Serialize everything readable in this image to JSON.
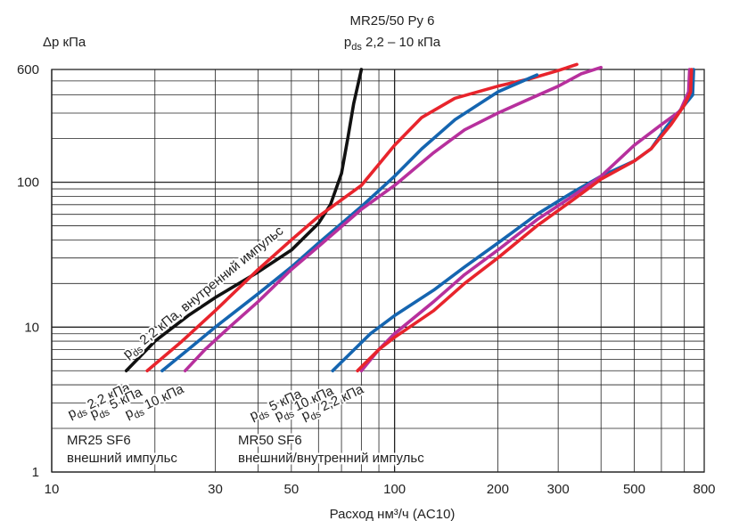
{
  "chart_data": {
    "type": "line",
    "title": "MR25/50 Ру 6",
    "subtitle_parts": [
      "p",
      "ds",
      " 2,2 – 10 кПа"
    ],
    "ylabel": "Δp кПа",
    "xlabel": "Расход нм³/ч (AC10)",
    "x_scale": "log",
    "y_scale": "log",
    "xlim": [
      10,
      800
    ],
    "ylim": [
      1,
      600
    ],
    "x_ticks": [
      {
        "value": 10,
        "label": "10"
      },
      {
        "value": 30,
        "label": "30"
      },
      {
        "value": 50,
        "label": "50"
      },
      {
        "value": 100,
        "label": "100"
      },
      {
        "value": 200,
        "label": "200"
      },
      {
        "value": 300,
        "label": "300"
      },
      {
        "value": 500,
        "label": "500"
      },
      {
        "value": 800,
        "label": "800"
      }
    ],
    "y_ticks": [
      {
        "value": 1,
        "label": "1"
      },
      {
        "value": 10,
        "label": "10"
      },
      {
        "value": 100,
        "label": "100"
      },
      {
        "value": 600,
        "label": "600"
      }
    ],
    "grid": true,
    "colors": {
      "black": "#111111",
      "red": "#e8242c",
      "blue": "#1565b0",
      "magenta": "#b7309d"
    },
    "series": [
      {
        "color": "black",
        "points": [
          [
            16.5,
            5
          ],
          [
            20,
            8
          ],
          [
            25,
            12
          ],
          [
            30,
            16
          ],
          [
            40,
            24
          ],
          [
            50,
            34
          ],
          [
            60,
            52
          ],
          [
            65,
            70
          ],
          [
            70,
            115
          ],
          [
            73,
            200
          ],
          [
            76,
            350
          ],
          [
            80,
            600
          ]
        ]
      },
      {
        "color": "red",
        "points": [
          [
            19,
            5
          ],
          [
            24,
            8
          ],
          [
            30,
            13
          ],
          [
            40,
            25
          ],
          [
            50,
            40
          ],
          [
            60,
            58
          ],
          [
            80,
            95
          ],
          [
            100,
            180
          ],
          [
            120,
            280
          ],
          [
            150,
            380
          ],
          [
            200,
            460
          ],
          [
            250,
            520
          ],
          [
            300,
            590
          ],
          [
            340,
            650
          ]
        ]
      },
      {
        "color": "blue",
        "points": [
          [
            21,
            5
          ],
          [
            25,
            7
          ],
          [
            30,
            10
          ],
          [
            40,
            17
          ],
          [
            50,
            26
          ],
          [
            60,
            38
          ],
          [
            80,
            68
          ],
          [
            100,
            110
          ],
          [
            120,
            170
          ],
          [
            150,
            270
          ],
          [
            200,
            420
          ],
          [
            260,
            550
          ]
        ]
      },
      {
        "color": "magenta",
        "points": [
          [
            24.5,
            5
          ],
          [
            28,
            7
          ],
          [
            33,
            10
          ],
          [
            40,
            15
          ],
          [
            50,
            25
          ],
          [
            60,
            36
          ],
          [
            80,
            65
          ],
          [
            100,
            95
          ],
          [
            130,
            160
          ],
          [
            160,
            230
          ],
          [
            200,
            300
          ],
          [
            250,
            380
          ],
          [
            300,
            460
          ],
          [
            350,
            560
          ],
          [
            400,
            620
          ]
        ]
      },
      {
        "color": "blue",
        "points": [
          [
            66,
            5
          ],
          [
            85,
            9
          ],
          [
            100,
            12
          ],
          [
            130,
            18
          ],
          [
            160,
            26
          ],
          [
            200,
            38
          ],
          [
            260,
            60
          ],
          [
            330,
            85
          ],
          [
            400,
            110
          ],
          [
            500,
            140
          ],
          [
            560,
            170
          ],
          [
            620,
            240
          ],
          [
            700,
            340
          ],
          [
            740,
            400
          ],
          [
            745,
            600
          ]
        ]
      },
      {
        "color": "magenta",
        "points": [
          [
            80,
            5
          ],
          [
            90,
            7
          ],
          [
            100,
            9
          ],
          [
            130,
            15
          ],
          [
            160,
            23
          ],
          [
            200,
            34
          ],
          [
            260,
            55
          ],
          [
            330,
            80
          ],
          [
            400,
            110
          ],
          [
            500,
            180
          ],
          [
            600,
            250
          ],
          [
            680,
            310
          ],
          [
            720,
            420
          ],
          [
            725,
            600
          ]
        ]
      },
      {
        "color": "red",
        "points": [
          [
            78,
            5
          ],
          [
            90,
            7
          ],
          [
            100,
            8.5
          ],
          [
            130,
            13
          ],
          [
            160,
            20
          ],
          [
            200,
            30
          ],
          [
            260,
            50
          ],
          [
            330,
            75
          ],
          [
            400,
            105
          ],
          [
            500,
            140
          ],
          [
            560,
            170
          ],
          [
            640,
            250
          ],
          [
            700,
            340
          ],
          [
            730,
            420
          ],
          [
            735,
            600
          ]
        ]
      }
    ],
    "annotations": [
      {
        "prefix": "p",
        "sub": "ds",
        "text": " 2,2 кПа, внутренний импульс",
        "color": "black"
      },
      {
        "prefix": "p",
        "sub": "ds",
        "text": " 2,2 кПа",
        "color": "red"
      },
      {
        "prefix": "p",
        "sub": "ds",
        "text": " 5 кПа",
        "color": "blue"
      },
      {
        "prefix": "p",
        "sub": "ds",
        "text": " 10 кПа",
        "color": "magenta"
      },
      {
        "prefix": "p",
        "sub": "ds",
        "text": " 5 кПа",
        "color": "blue"
      },
      {
        "prefix": "p",
        "sub": "ds",
        "text": " 10 кПа",
        "color": "magenta"
      },
      {
        "prefix": "p",
        "sub": "ds",
        "text": " 2,2 кПа",
        "color": "red"
      }
    ],
    "captions": [
      {
        "lines": [
          "MR25 SF6",
          "внешний импульс"
        ]
      },
      {
        "lines": [
          "MR50 SF6",
          "внешний/внутренний импульс"
        ]
      }
    ]
  }
}
